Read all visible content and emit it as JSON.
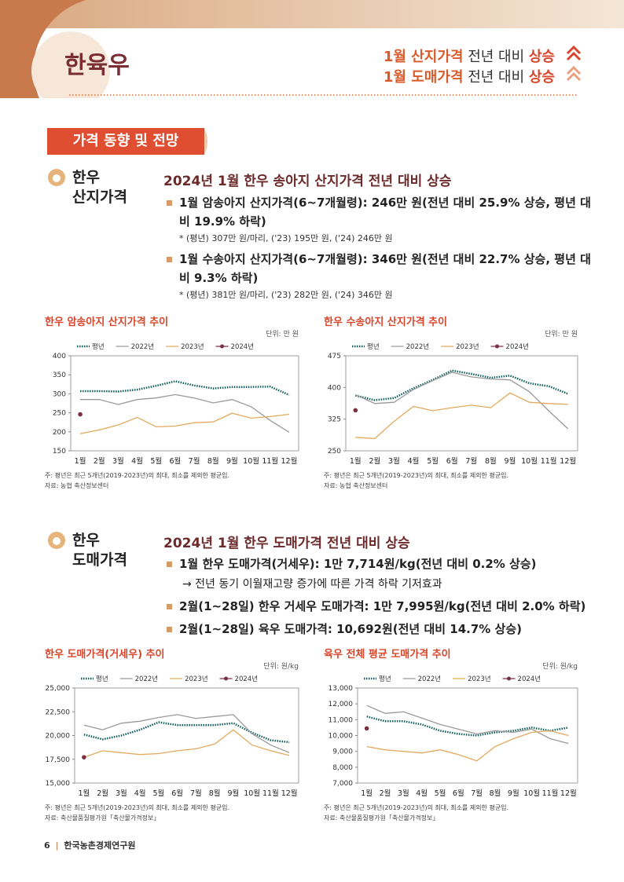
{
  "header": {
    "title": "한육우",
    "headlines": [
      [
        "1월 산지가격",
        " 전년 대비 ",
        "상승"
      ],
      [
        "1월 도매가격",
        " 전년 대비 ",
        "상승"
      ]
    ]
  },
  "section_title": "가격 동향 및 전망",
  "subsections": [
    {
      "label": [
        "한우",
        "산지가격"
      ],
      "heading": "2024년 1월 한우 송아지 산지가격 전년 대비 상승",
      "bullets": [
        {
          "text": "1월 암송아지 산지가격(6~7개월령): 246만 원(전년 대비 25.9% 상승, 평년 대비 19.9% 하락)",
          "note": "* (평년) 307만 원/마리, ('23) 195만 원, ('24) 246만 원"
        },
        {
          "text": "1월 수송아지 산지가격(6~7개월령): 346만 원(전년 대비 22.7% 상승, 평년 대비 9.3% 하락)",
          "note": "* (평년) 381만 원/마리, ('23) 282만 원, ('24) 346만 원"
        }
      ]
    },
    {
      "label": [
        "한우",
        "도매가격"
      ],
      "heading": "2024년 1월 한우 도매가격 전년 대비 상승",
      "bullets": [
        {
          "text": "1월 한우 도매가격(거세우): 1만 7,714원/kg(전년 대비 0.2% 상승)",
          "note": "→ 전년 동기 이월재고량 증가에 따른 가격 하락 기저효과"
        },
        {
          "text": "2월(1~28일) 한우 거세우 도매가격: 1만 7,995원/kg(전년 대비 2.0% 하락)"
        },
        {
          "text": "2월(1~28일) 육우 도매가격: 10,692원(전년 대비 14.7% 상승)"
        }
      ]
    }
  ],
  "chart_data": [
    {
      "type": "line",
      "title": "한우 암송아지 산지가격 추이",
      "unit": "단위: 만 원",
      "categories": [
        "1월",
        "2월",
        "3월",
        "4월",
        "5월",
        "6월",
        "7월",
        "8월",
        "9월",
        "10월",
        "11월",
        "12월"
      ],
      "series": [
        {
          "name": "평년",
          "color": "#0d5e5a",
          "line_style": "dotted",
          "values": [
            307,
            307,
            306,
            311,
            321,
            333,
            322,
            314,
            318,
            318,
            319,
            297
          ]
        },
        {
          "name": "2022년",
          "color": "#9a9a9a",
          "values": [
            285,
            285,
            272,
            285,
            289,
            298,
            289,
            276,
            285,
            266,
            230,
            199
          ]
        },
        {
          "name": "2023년",
          "color": "#e2aa5e",
          "values": [
            195,
            205,
            218,
            238,
            213,
            215,
            224,
            226,
            249,
            236,
            240,
            246
          ]
        },
        {
          "name": "2024년",
          "color": "#7b3040",
          "marker": true,
          "values": [
            246,
            null,
            null,
            null,
            null,
            null,
            null,
            null,
            null,
            null,
            null,
            null
          ]
        }
      ],
      "ylim": [
        150,
        400
      ],
      "yticks": [
        150,
        200,
        250,
        300,
        350,
        400
      ],
      "notes": [
        "주: 평년은 최근 5개년(2019-2023년)의 최대, 최소를 제외한 평균임.",
        "자료: 농협 축산정보센터"
      ]
    },
    {
      "type": "line",
      "title": "한우 수송아지 산지가격 추이",
      "unit": "단위: 만 원",
      "categories": [
        "1월",
        "2월",
        "3월",
        "4월",
        "5월",
        "6월",
        "7월",
        "8월",
        "9월",
        "10월",
        "11월",
        "12월"
      ],
      "series": [
        {
          "name": "평년",
          "color": "#0d5e5a",
          "line_style": "dotted",
          "values": [
            381,
            370,
            375,
            398,
            418,
            440,
            432,
            423,
            428,
            410,
            403,
            385
          ]
        },
        {
          "name": "2022년",
          "color": "#9a9a9a",
          "values": [
            383,
            362,
            365,
            395,
            416,
            436,
            425,
            420,
            418,
            390,
            345,
            302
          ]
        },
        {
          "name": "2023년",
          "color": "#e2aa5e",
          "values": [
            282,
            279,
            320,
            355,
            345,
            352,
            358,
            352,
            387,
            365,
            362,
            360
          ]
        },
        {
          "name": "2024년",
          "color": "#7b3040",
          "marker": true,
          "values": [
            346,
            null,
            null,
            null,
            null,
            null,
            null,
            null,
            null,
            null,
            null,
            null
          ]
        }
      ],
      "ylim": [
        250,
        475
      ],
      "yticks": [
        250,
        325,
        400,
        475
      ],
      "notes": [
        "주: 평년은 최근 5개년(2019-2023년)의 최대, 최소를 제외한 평균임.",
        "자료: 농협 축산정보센터"
      ]
    },
    {
      "type": "line",
      "title": "한우 도매가격(거세우) 추이",
      "unit": "단위: 원/kg",
      "categories": [
        "1월",
        "2월",
        "3월",
        "4월",
        "5월",
        "6월",
        "7월",
        "8월",
        "9월",
        "10월",
        "11월",
        "12월"
      ],
      "series": [
        {
          "name": "평년",
          "color": "#0d5e5a",
          "line_style": "dotted",
          "values": [
            20100,
            19600,
            20000,
            20600,
            21400,
            21100,
            21100,
            21100,
            21300,
            20300,
            19500,
            19300
          ]
        },
        {
          "name": "2022년",
          "color": "#9a9a9a",
          "values": [
            21100,
            20600,
            21300,
            21500,
            21900,
            22200,
            21800,
            22000,
            22200,
            20200,
            19000,
            18200
          ]
        },
        {
          "name": "2023년",
          "color": "#e2aa5e",
          "values": [
            17700,
            18400,
            18200,
            18000,
            18100,
            18400,
            18600,
            19100,
            20600,
            19000,
            18400,
            17900
          ]
        },
        {
          "name": "2024년",
          "color": "#7b3040",
          "marker": true,
          "values": [
            17714,
            null,
            null,
            null,
            null,
            null,
            null,
            null,
            null,
            null,
            null,
            null
          ]
        }
      ],
      "ylim": [
        15000,
        25000
      ],
      "yticks": [
        {
          "value": 15000,
          "label": "15,000"
        },
        {
          "value": 17500,
          "label": "17,500"
        },
        {
          "value": 20000,
          "label": "20,000"
        },
        {
          "value": 22500,
          "label": "22,500"
        },
        {
          "value": 25000,
          "label": "25,000"
        }
      ],
      "notes": [
        "주: 평년은 최근 5개년(2019-2023년)의 최대, 최소를 제외한 평균임.",
        "자료: 축산물품질평가원「축산물가격정보」"
      ]
    },
    {
      "type": "line",
      "title": "육우 전체 평균 도매가격 추이",
      "unit": "단위: 원/kg",
      "categories": [
        "1월",
        "2월",
        "3월",
        "4월",
        "5월",
        "6월",
        "7월",
        "8월",
        "9월",
        "10월",
        "11월",
        "12월"
      ],
      "series": [
        {
          "name": "평년",
          "color": "#0d5e5a",
          "line_style": "dotted",
          "values": [
            11200,
            10900,
            10900,
            10700,
            10300,
            10100,
            10000,
            10200,
            10300,
            10500,
            10300,
            10500
          ]
        },
        {
          "name": "2022년",
          "color": "#9a9a9a",
          "values": [
            11900,
            11400,
            11500,
            11100,
            10700,
            10400,
            10100,
            10300,
            10200,
            10400,
            9800,
            9500
          ]
        },
        {
          "name": "2023년",
          "color": "#e2aa5e",
          "values": [
            9300,
            9100,
            9000,
            8900,
            9100,
            8800,
            8400,
            9300,
            9800,
            10200,
            10300,
            10000
          ]
        },
        {
          "name": "2024년",
          "color": "#7b3040",
          "marker": true,
          "values": [
            10450,
            null,
            null,
            null,
            null,
            null,
            null,
            null,
            null,
            null,
            null,
            null
          ]
        }
      ],
      "ylim": [
        7000,
        13000
      ],
      "yticks": [
        {
          "value": 7000,
          "label": "7,000"
        },
        {
          "value": 8000,
          "label": "8,000"
        },
        {
          "value": 9000,
          "label": "9,000"
        },
        {
          "value": 10000,
          "label": "10,000"
        },
        {
          "value": 11000,
          "label": "11,000"
        },
        {
          "value": 12000,
          "label": "12,000"
        },
        {
          "value": 13000,
          "label": "13,000"
        }
      ],
      "notes": [
        "주: 평년은 최근 5개년(2019-2023년)의 최대, 최소를 제외한 평균임.",
        "자료: 축산물품질평가원「축산물가격정보」"
      ]
    }
  ],
  "footer": {
    "page": "6",
    "org": "한국농촌경제연구원"
  }
}
